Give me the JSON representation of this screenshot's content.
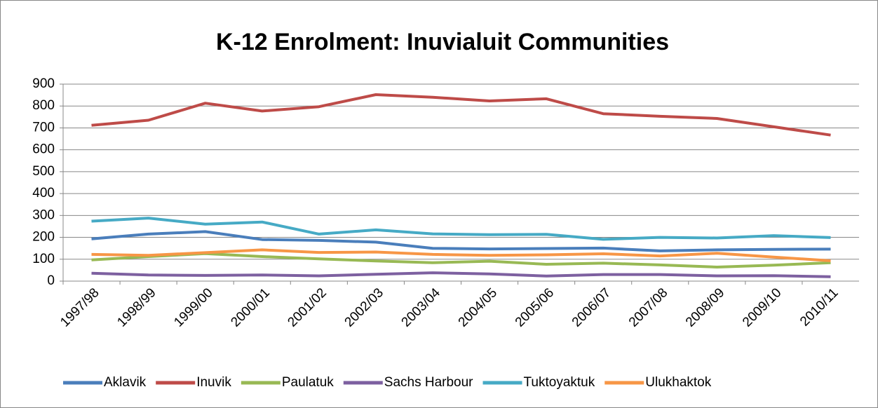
{
  "chart_data": {
    "type": "line",
    "title": "K-12 Enrolment: Inuvialuit Communities",
    "categories": [
      "1997/98",
      "1998/99",
      "1999/00",
      "2000/01",
      "2001/02",
      "2002/03",
      "2003/04",
      "2004/05",
      "2005/06",
      "2006/07",
      "2007/08",
      "2008/09",
      "2009/10",
      "2010/11"
    ],
    "series": [
      {
        "name": "Aklavik",
        "color": "#4a7ebb",
        "values": [
          193,
          215,
          226,
          190,
          186,
          178,
          150,
          147,
          149,
          151,
          138,
          143,
          145,
          146
        ]
      },
      {
        "name": "Inuvik",
        "color": "#be4b48",
        "values": [
          712,
          735,
          813,
          777,
          797,
          852,
          840,
          823,
          833,
          765,
          753,
          743,
          705,
          667
        ]
      },
      {
        "name": "Paulatuk",
        "color": "#98b954",
        "values": [
          97,
          112,
          126,
          112,
          102,
          92,
          84,
          91,
          77,
          82,
          74,
          64,
          73,
          84
        ]
      },
      {
        "name": "Sachs Harbour",
        "color": "#7d60a0",
        "values": [
          36,
          28,
          26,
          28,
          24,
          31,
          38,
          33,
          23,
          30,
          30,
          24,
          25,
          20
        ]
      },
      {
        "name": "Tuktoyaktuk",
        "color": "#46aac5",
        "values": [
          274,
          288,
          260,
          270,
          215,
          234,
          216,
          212,
          214,
          191,
          200,
          197,
          208,
          199
        ]
      },
      {
        "name": "Ulukhaktok",
        "color": "#f79646",
        "values": [
          122,
          118,
          130,
          143,
          131,
          133,
          122,
          118,
          120,
          125,
          115,
          127,
          110,
          93
        ]
      }
    ],
    "ylim": [
      0,
      900
    ],
    "yticks": [
      0,
      100,
      200,
      300,
      400,
      500,
      600,
      700,
      800,
      900
    ],
    "grid": true,
    "legend": "bottom"
  }
}
